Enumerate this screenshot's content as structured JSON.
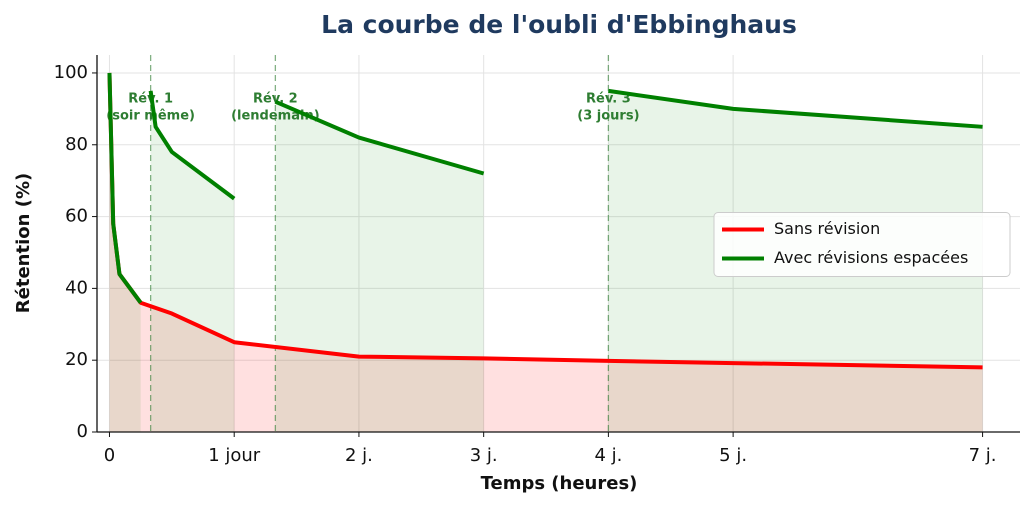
{
  "chart_data": {
    "type": "line",
    "title": "La courbe de l'oubli d'Ebbinghaus",
    "xlabel": "Temps (heures)",
    "ylabel": "Rétention (%)",
    "xlim": [
      -0.1,
      7.3
    ],
    "ylim": [
      0,
      105
    ],
    "xticks": [
      0,
      {
        "value": 1,
        "label": "1 jour"
      },
      {
        "value": 2,
        "label": "2 j."
      },
      {
        "value": 3,
        "label": "3 j."
      },
      {
        "value": 4,
        "label": "4 j."
      },
      {
        "value": 5,
        "label": "5 j."
      },
      {
        "value": 7,
        "label": "7 j."
      }
    ],
    "yticks": [
      0,
      20,
      40,
      60,
      80,
      100
    ],
    "grid": true,
    "legend": "center right",
    "series": [
      {
        "name": "Sans révision",
        "color": "#ff0000",
        "x": [
          0,
          0.03,
          0.08,
          0.25,
          0.5,
          1,
          2,
          3,
          4,
          5,
          7
        ],
        "values": [
          100,
          58,
          44,
          36,
          33,
          25,
          21,
          20.5,
          19.8,
          19.2,
          18
        ]
      },
      {
        "name": "Avec révisions espacées",
        "color": "#008000",
        "x": [
          0,
          0.03,
          0.08,
          0.25,
          null,
          0.33,
          0.37,
          0.5,
          1,
          null,
          1.33,
          2,
          3,
          null,
          4,
          5,
          7
        ],
        "values": [
          100,
          58,
          44,
          36,
          null,
          95,
          85,
          78,
          65,
          null,
          92,
          82,
          72,
          null,
          95,
          90,
          85
        ]
      }
    ],
    "revisions": [
      {
        "x": 0.33,
        "label": [
          "Rév. 1",
          "(soir même)"
        ]
      },
      {
        "x": 1.33,
        "label": [
          "Rév. 2",
          "(lendemain)"
        ]
      },
      {
        "x": 4,
        "label": [
          "Rév. 3",
          "(3 jours)"
        ]
      }
    ]
  }
}
